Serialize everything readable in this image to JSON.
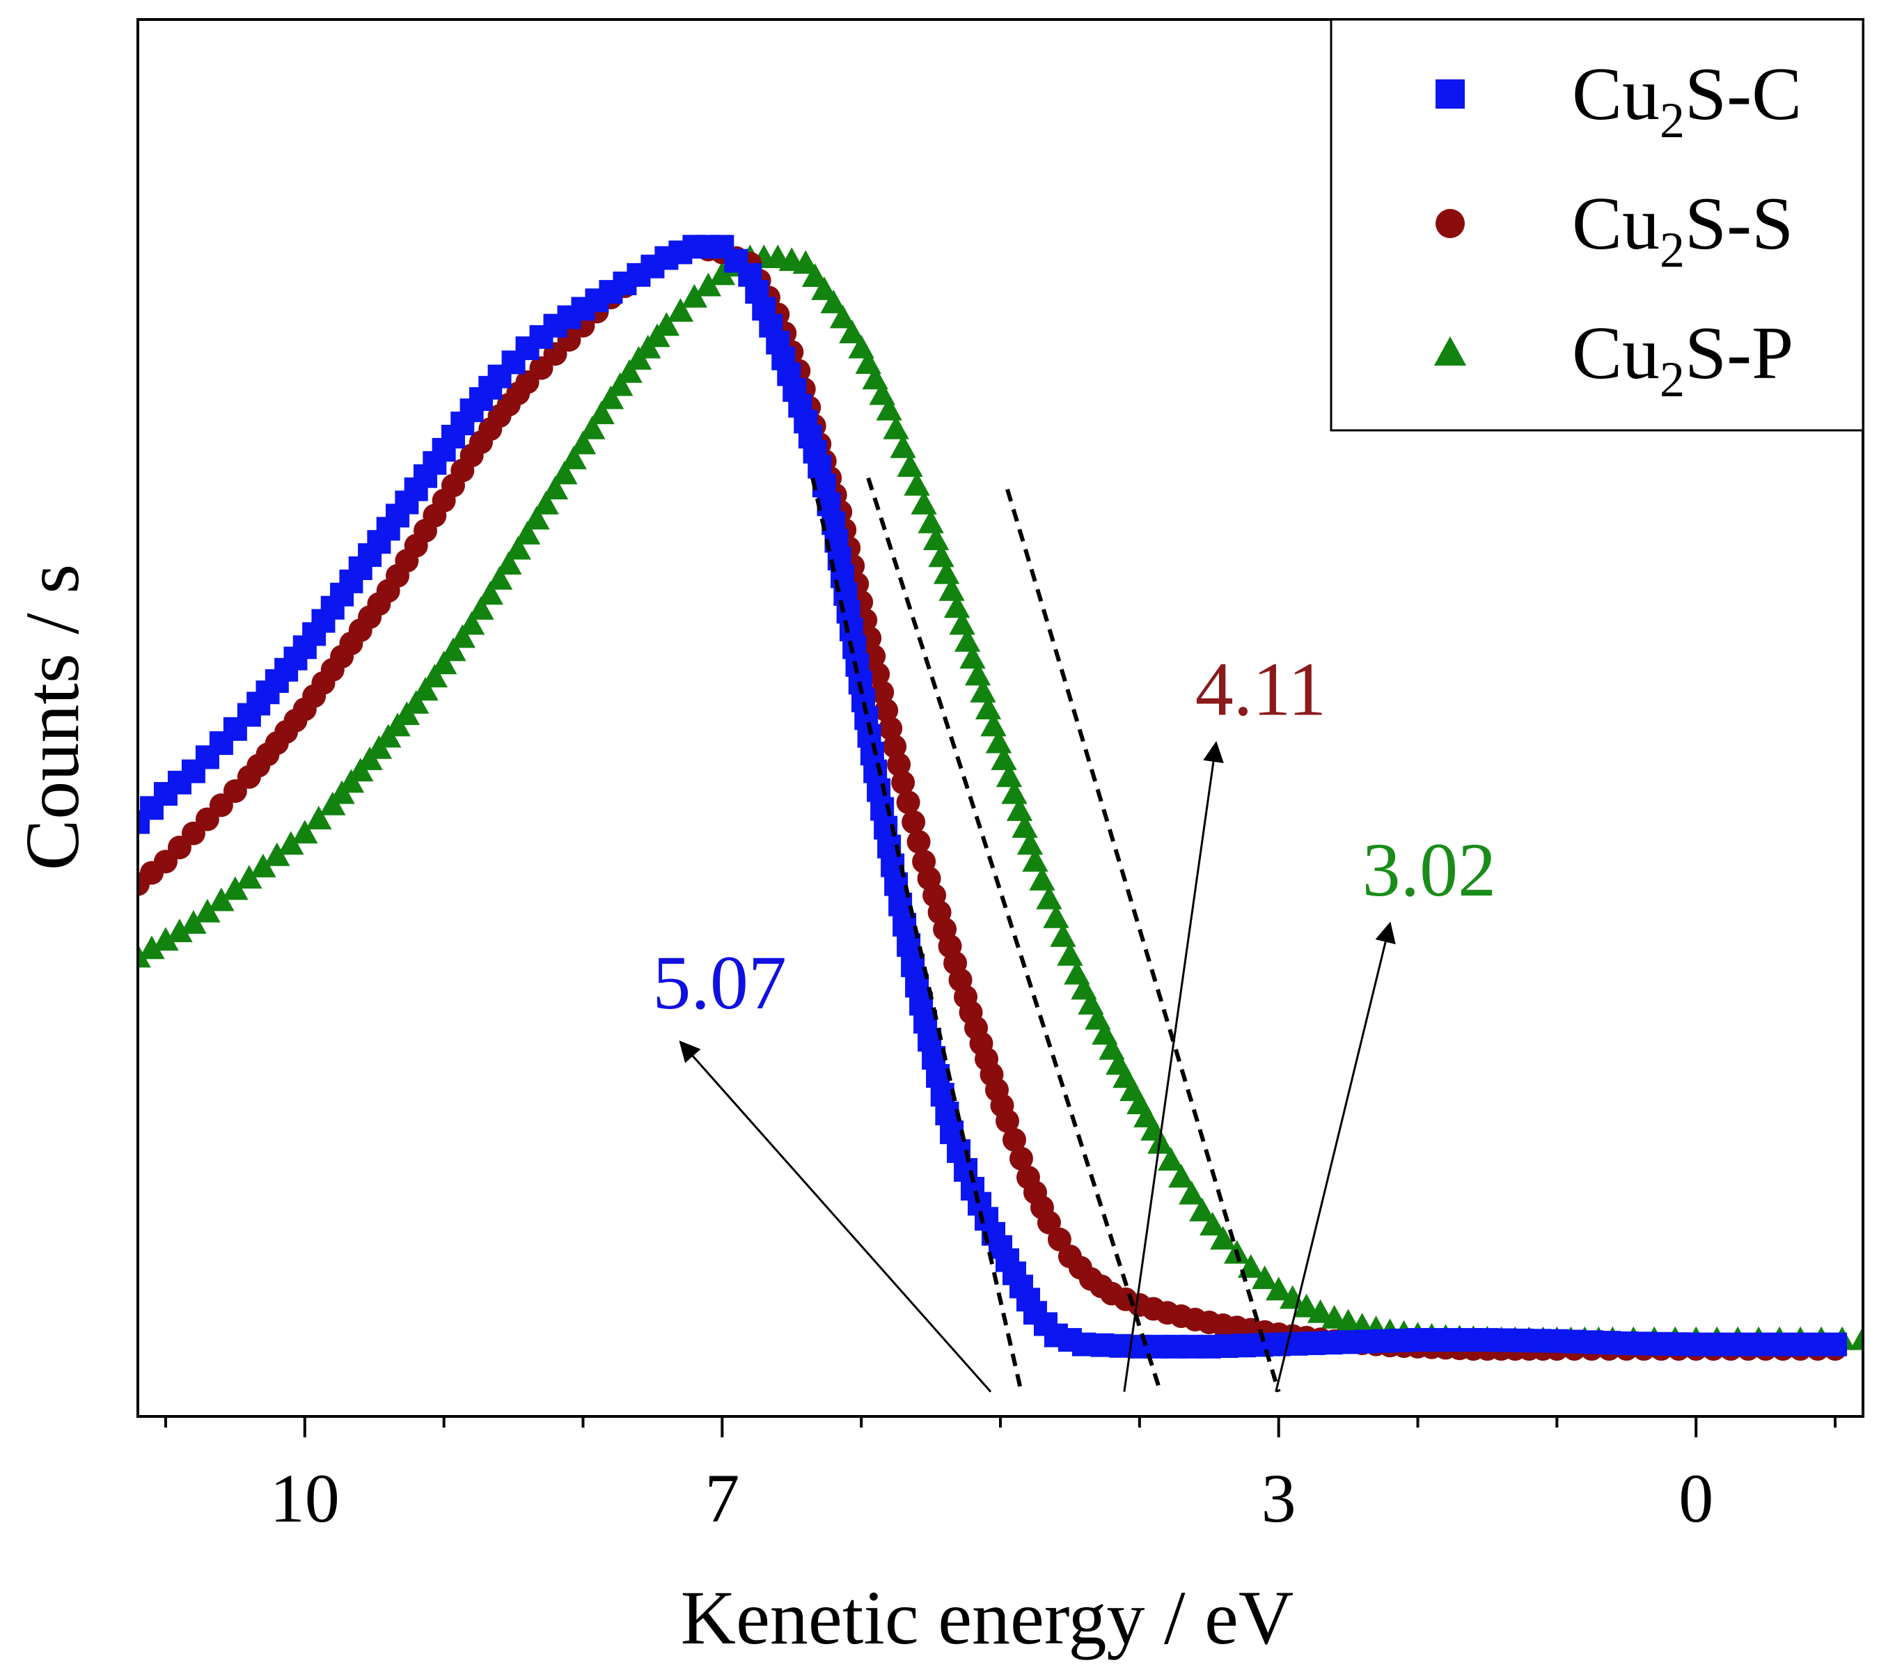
{
  "chart_data": {
    "type": "scatter",
    "title": "",
    "xlabel": "Kenetic energy / eV",
    "ylabel": "Counts / s",
    "xlim": [
      11.2,
      -1.2
    ],
    "ylim": [
      0,
      1
    ],
    "x_ticks_major": [
      10,
      7,
      3,
      0
    ],
    "x_tick_labels": [
      "10",
      "7",
      "3",
      "0"
    ],
    "x_minor_step": 1,
    "legend_position": "top-right",
    "series": [
      {
        "name": "Cu2S-C",
        "legend_base": "Cu",
        "legend_sub": "2",
        "legend_suffix": "S-C",
        "marker": "square",
        "color": "#0b16f0",
        "x": [
          11.2,
          11.0,
          10.8,
          10.6,
          10.4,
          10.2,
          10.0,
          9.8,
          9.6,
          9.4,
          9.2,
          9.0,
          8.8,
          8.6,
          8.4,
          8.2,
          8.0,
          7.8,
          7.6,
          7.4,
          7.2,
          7.0,
          6.8,
          6.6,
          6.4,
          6.3,
          6.2,
          6.05,
          5.9,
          5.75,
          5.6,
          5.45,
          5.35,
          5.2,
          5.05,
          4.9,
          4.75,
          4.6,
          4.4,
          4.0,
          3.5,
          3.0,
          2.5,
          2.0,
          1.5,
          1.0,
          0.5,
          0.0,
          -0.5,
          -1.0
        ],
        "y": [
          0.475,
          0.5,
          0.52,
          0.545,
          0.57,
          0.6,
          0.63,
          0.665,
          0.7,
          0.735,
          0.77,
          0.805,
          0.84,
          0.87,
          0.895,
          0.915,
          0.93,
          0.945,
          0.96,
          0.975,
          0.985,
          0.985,
          0.96,
          0.9,
          0.83,
          0.79,
          0.74,
          0.63,
          0.52,
          0.42,
          0.33,
          0.25,
          0.2,
          0.15,
          0.11,
          0.075,
          0.04,
          0.02,
          0.012,
          0.01,
          0.01,
          0.012,
          0.014,
          0.016,
          0.016,
          0.015,
          0.013,
          0.012,
          0.012,
          0.012
        ]
      },
      {
        "name": "Cu2S-S",
        "legend_base": "Cu",
        "legend_sub": "2",
        "legend_suffix": "S-S",
        "marker": "circle",
        "color": "#8b0c0c",
        "x": [
          11.2,
          11.0,
          10.8,
          10.6,
          10.4,
          10.2,
          10.0,
          9.8,
          9.6,
          9.4,
          9.2,
          9.0,
          8.8,
          8.6,
          8.4,
          8.2,
          8.0,
          7.8,
          7.6,
          7.4,
          7.2,
          7.0,
          6.8,
          6.6,
          6.45,
          6.3,
          6.15,
          6.0,
          5.85,
          5.7,
          5.55,
          5.4,
          5.25,
          5.1,
          4.95,
          4.8,
          4.65,
          4.5,
          4.35,
          4.2,
          4.0,
          3.8,
          3.6,
          3.4,
          3.2,
          3.0,
          2.8,
          2.6,
          2.4,
          2.2,
          2.0,
          1.8,
          1.6,
          1.4,
          1.2,
          1.0,
          0.5,
          0.0,
          -0.5,
          -1.0
        ],
        "y": [
          0.42,
          0.44,
          0.465,
          0.49,
          0.515,
          0.545,
          0.575,
          0.61,
          0.645,
          0.68,
          0.72,
          0.76,
          0.8,
          0.835,
          0.865,
          0.89,
          0.915,
          0.94,
          0.96,
          0.975,
          0.985,
          0.98,
          0.97,
          0.925,
          0.875,
          0.81,
          0.75,
          0.67,
          0.59,
          0.51,
          0.44,
          0.38,
          0.32,
          0.265,
          0.21,
          0.16,
          0.12,
          0.09,
          0.07,
          0.057,
          0.047,
          0.04,
          0.034,
          0.029,
          0.025,
          0.021,
          0.018,
          0.015,
          0.013,
          0.011,
          0.01,
          0.009,
          0.008,
          0.008,
          0.008,
          0.008,
          0.008,
          0.008,
          0.008,
          0.008
        ]
      },
      {
        "name": "Cu2S-P",
        "legend_base": "Cu",
        "legend_sub": "2",
        "legend_suffix": "S-P",
        "marker": "triangle",
        "color": "#12830f",
        "x": [
          11.2,
          11.0,
          10.8,
          10.6,
          10.4,
          10.2,
          10.0,
          9.8,
          9.6,
          9.4,
          9.2,
          9.0,
          8.8,
          8.6,
          8.4,
          8.2,
          8.0,
          7.8,
          7.6,
          7.4,
          7.2,
          7.0,
          6.8,
          6.6,
          6.4,
          6.2,
          6.0,
          5.8,
          5.65,
          5.5,
          5.35,
          5.2,
          5.05,
          4.9,
          4.75,
          4.6,
          4.45,
          4.3,
          4.15,
          4.0,
          3.85,
          3.7,
          3.55,
          3.4,
          3.2,
          3.0,
          2.8,
          2.6,
          2.4,
          2.2,
          2.0,
          1.8,
          1.6,
          1.4,
          1.2,
          1.0,
          0.8,
          0.6,
          0.3,
          0.0,
          -0.3,
          -0.6,
          -0.9,
          -1.2
        ],
        "y": [
          0.355,
          0.37,
          0.385,
          0.405,
          0.425,
          0.445,
          0.465,
          0.49,
          0.52,
          0.55,
          0.58,
          0.615,
          0.65,
          0.69,
          0.73,
          0.77,
          0.81,
          0.85,
          0.885,
          0.915,
          0.94,
          0.96,
          0.975,
          0.975,
          0.97,
          0.935,
          0.895,
          0.84,
          0.79,
          0.74,
          0.68,
          0.62,
          0.56,
          0.5,
          0.44,
          0.39,
          0.34,
          0.3,
          0.26,
          0.225,
          0.19,
          0.16,
          0.13,
          0.105,
          0.08,
          0.06,
          0.045,
          0.035,
          0.028,
          0.023,
          0.02,
          0.018,
          0.017,
          0.016,
          0.016,
          0.016,
          0.016,
          0.016,
          0.016,
          0.016,
          0.016,
          0.016,
          0.016,
          0.016
        ]
      }
    ],
    "fit_lines": [
      {
        "series": "Cu2S-C",
        "from": [
          6.35,
          0.78
        ],
        "to": [
          4.85,
          -0.03
        ]
      },
      {
        "series": "Cu2S-S",
        "from": [
          5.95,
          0.78
        ],
        "to": [
          3.85,
          -0.03
        ]
      },
      {
        "series": "Cu2S-P",
        "from": [
          4.95,
          0.77
        ],
        "to": [
          3.0,
          -0.03
        ]
      }
    ],
    "annotations": [
      {
        "text": "5.07",
        "color": "#1010e0",
        "series": "Cu2S-C",
        "value": 5.07,
        "label_at": [
          7.5,
          0.31
        ],
        "arrow_from": [
          5.07,
          -0.03
        ],
        "arrow_to": [
          7.3,
          0.28
        ]
      },
      {
        "text": "4.11",
        "color": "#8b1a1a",
        "series": "Cu2S-S",
        "value": 4.11,
        "label_at": [
          3.6,
          0.57
        ],
        "arrow_from": [
          4.11,
          -0.03
        ],
        "arrow_to": [
          3.45,
          0.545
        ]
      },
      {
        "text": "3.02",
        "color": "#1a8c1a",
        "series": "Cu2S-P",
        "value": 3.02,
        "label_at": [
          2.4,
          0.41
        ],
        "arrow_from": [
          3.02,
          -0.03
        ],
        "arrow_to": [
          2.2,
          0.385
        ]
      }
    ]
  }
}
